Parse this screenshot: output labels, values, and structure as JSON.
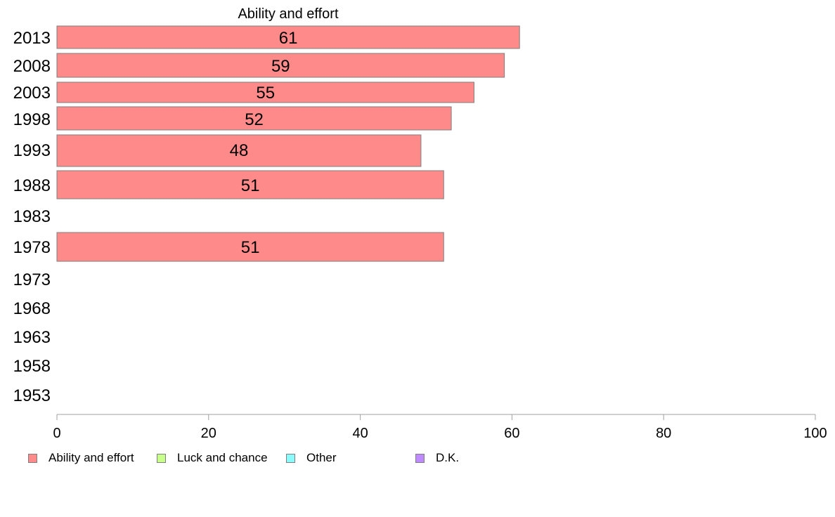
{
  "chart_data": {
    "type": "bar",
    "orientation": "horizontal",
    "title": "Ability and effort",
    "categories": [
      "2013",
      "2008",
      "2003",
      "1998",
      "1993",
      "1988",
      "1983",
      "1978",
      "1973",
      "1968",
      "1963",
      "1958",
      "1953"
    ],
    "series": [
      {
        "name": "Ability and effort",
        "color": "#ff8a8a",
        "values": [
          61,
          59,
          55,
          52,
          48,
          51,
          null,
          51,
          null,
          null,
          null,
          null,
          null
        ],
        "value_labels": [
          "61",
          "59",
          "55",
          "52",
          "48",
          "51",
          "",
          "51",
          "",
          "",
          "",
          "",
          ""
        ]
      }
    ],
    "xlim": [
      0,
      100
    ],
    "xticks": [
      "0",
      "20",
      "40",
      "60",
      "80",
      "100"
    ],
    "grid": false,
    "legend_position": "bottom"
  },
  "legend": [
    {
      "label": "Ability and effort",
      "color": "#ff8a8a"
    },
    {
      "label": "Luck and chance",
      "color": "#c8ff8a"
    },
    {
      "label": "Other",
      "color": "#8afafa"
    },
    {
      "label": "D.K.",
      "color": "#c08aff"
    }
  ]
}
